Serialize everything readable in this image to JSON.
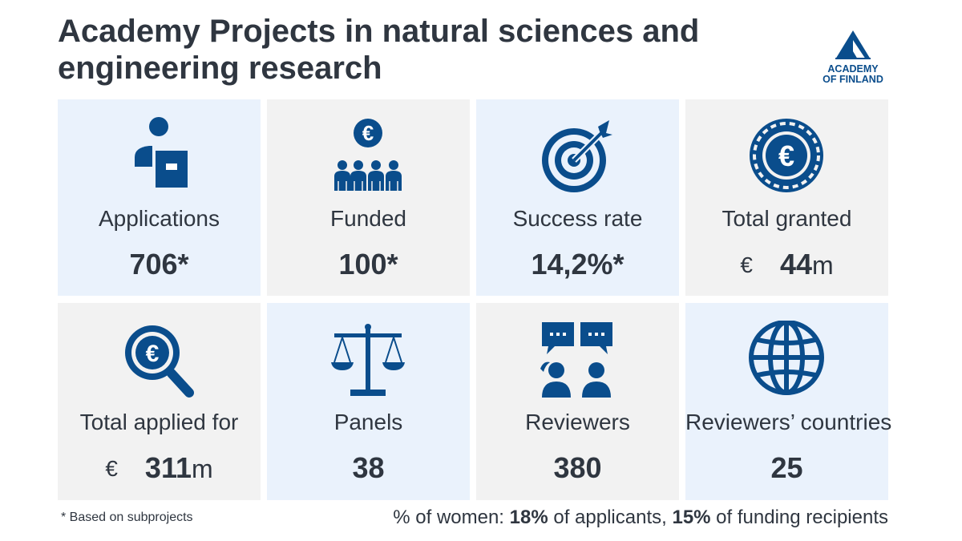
{
  "header": {
    "title": "Academy Projects in natural sciences and engineering research",
    "logo_line1": "ACADEMY",
    "logo_line2": "OF FINLAND"
  },
  "colors": {
    "icon_blue": "#0a4d8c",
    "tile_blue": "#eaf2fc",
    "tile_grey": "#f2f2f2",
    "text": "#2f3640"
  },
  "tiles": [
    {
      "icon": "applicant-icon",
      "label": "Applications",
      "value": "706*"
    },
    {
      "icon": "funded-group-icon",
      "label": "Funded",
      "value": "100*"
    },
    {
      "icon": "target-icon",
      "label": "Success rate",
      "value": "14,2%*"
    },
    {
      "icon": "euro-coin-icon",
      "label": "Total granted",
      "currency": "€",
      "value": "44",
      "unit": "m"
    },
    {
      "icon": "euro-magnifier-icon",
      "label": "Total applied for",
      "currency": "€",
      "value": "311",
      "unit": "m"
    },
    {
      "icon": "scales-icon",
      "label": "Panels",
      "value": "38"
    },
    {
      "icon": "reviewers-chat-icon",
      "label": "Reviewers",
      "value": "380"
    },
    {
      "icon": "globe-icon",
      "label": "Reviewers’ countries",
      "value": "25"
    }
  ],
  "footer": {
    "footnote": "* Based on subprojects",
    "women_prefix": "% of women: ",
    "women_applicants_value": "18%",
    "women_applicants_text": " of applicants, ",
    "women_recipients_value": "15%",
    "women_recipients_text": " of funding recipients"
  }
}
